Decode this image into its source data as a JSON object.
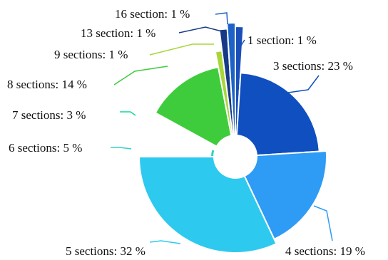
{
  "chart_data": {
    "type": "pie",
    "title": "",
    "variant": "nightingale-rose-with-center-hole",
    "slices": [
      {
        "label": "1 section: 1 %",
        "category": "1 section",
        "value": 1,
        "color": "#1a4fb8"
      },
      {
        "label": "3 sections: 23 %",
        "category": "3 sections",
        "value": 23,
        "color": "#0f4fbf"
      },
      {
        "label": "4 sections: 19 %",
        "category": "4 sections",
        "value": 19,
        "color": "#2e9bf4"
      },
      {
        "label": "5 sections: 32 %",
        "category": "5 sections",
        "value": 32,
        "color": "#2ec9ee"
      },
      {
        "label": "6 sections: 5 %",
        "category": "6 sections",
        "value": 5,
        "color": "#2ed3c4"
      },
      {
        "label": "7 sections: 3 %",
        "category": "7 sections",
        "value": 3,
        "color": "#0ddc9a"
      },
      {
        "label": "8 sections: 14 %",
        "category": "8 sections",
        "value": 14,
        "color": "#3fcc3c"
      },
      {
        "label": "9 sections: 1 %",
        "category": "9 sections",
        "value": 1,
        "color": "#a8d63a"
      },
      {
        "label": "13 section: 1 %",
        "category": "13 section",
        "value": 1,
        "color": "#163a86"
      },
      {
        "label": "16 section: 1 %",
        "category": "16 section",
        "value": 1,
        "color": "#1d63c7"
      }
    ],
    "legend": "none"
  }
}
